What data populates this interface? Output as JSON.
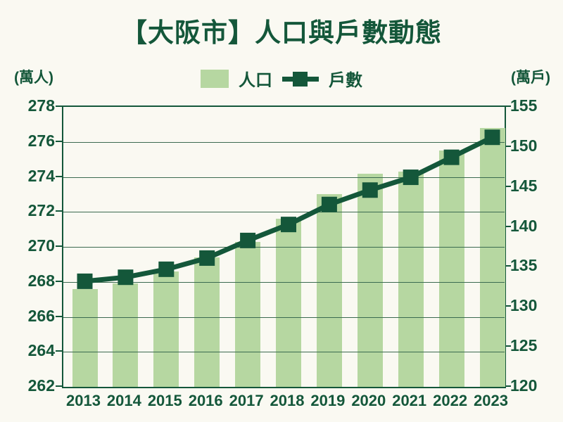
{
  "title": "【大阪市】人口與戶數動態",
  "legend": {
    "population_label": "人口",
    "households_label": "戶數"
  },
  "left_axis": {
    "unit": "(萬人)",
    "ticks": [
      278,
      276,
      274,
      272,
      270,
      268,
      266,
      264,
      262
    ],
    "min": 262,
    "max": 278
  },
  "right_axis": {
    "unit": "(萬戶)",
    "ticks": [
      155,
      150,
      145,
      140,
      135,
      130,
      125,
      120
    ],
    "min": 120,
    "max": 155
  },
  "colors": {
    "bar_fill": "#b6d7a1",
    "line": "#14573a",
    "text": "#14573a",
    "grid": "#3b6a50",
    "background": "#faf9f2"
  },
  "chart_data": {
    "type": "bar+line",
    "title": "【大阪市】人口與戶數動態",
    "categories": [
      "2013",
      "2014",
      "2015",
      "2016",
      "2017",
      "2018",
      "2019",
      "2020",
      "2021",
      "2022",
      "2023"
    ],
    "series": [
      {
        "name": "人口",
        "type": "bar",
        "axis": "left",
        "unit": "萬人",
        "values": [
          267.6,
          267.9,
          268.6,
          269.4,
          270.3,
          271.6,
          273.0,
          274.2,
          274.3,
          275.5,
          276.8
        ]
      },
      {
        "name": "戶數",
        "type": "line",
        "axis": "right",
        "unit": "萬戶",
        "values": [
          133.2,
          133.7,
          134.7,
          136.1,
          138.3,
          140.3,
          142.8,
          144.6,
          146.2,
          148.7,
          151.2
        ]
      }
    ],
    "left_ylim": [
      262,
      278
    ],
    "right_ylim": [
      120,
      155
    ],
    "grid": "horizontal",
    "legend_position": "top-center"
  }
}
